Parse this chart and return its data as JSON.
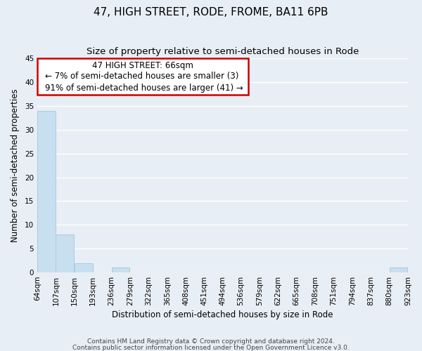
{
  "title": "47, HIGH STREET, RODE, FROME, BA11 6PB",
  "subtitle": "Size of property relative to semi-detached houses in Rode",
  "xlabel": "Distribution of semi-detached houses by size in Rode",
  "ylabel": "Number of semi-detached properties",
  "footnote1": "Contains HM Land Registry data © Crown copyright and database right 2024.",
  "footnote2": "Contains public sector information licensed under the Open Government Licence v3.0.",
  "bin_edges": [
    64,
    107,
    150,
    193,
    236,
    279,
    322,
    365,
    408,
    451,
    494,
    536,
    579,
    622,
    665,
    708,
    751,
    794,
    837,
    880,
    923
  ],
  "bar_values": [
    34,
    8,
    2,
    0,
    1,
    0,
    0,
    0,
    0,
    0,
    0,
    0,
    0,
    0,
    0,
    0,
    0,
    0,
    0,
    1
  ],
  "bar_color": "#c8dff0",
  "bar_edge_color": "#aacce0",
  "highlight_bar_index": -1,
  "ylim": [
    0,
    45
  ],
  "yticks": [
    0,
    5,
    10,
    15,
    20,
    25,
    30,
    35,
    40,
    45
  ],
  "annotation_title": "47 HIGH STREET: 66sqm",
  "annotation_line1": "← 7% of semi-detached houses are smaller (3)",
  "annotation_line2": "91% of semi-detached houses are larger (41) →",
  "annotation_box_color": "#cc0000",
  "background_color": "#e8eef5",
  "grid_color": "#ffffff",
  "title_fontsize": 11,
  "subtitle_fontsize": 9.5,
  "axis_label_fontsize": 8.5,
  "tick_fontsize": 7.5,
  "annotation_fontsize": 8.5,
  "footnote_fontsize": 6.5
}
